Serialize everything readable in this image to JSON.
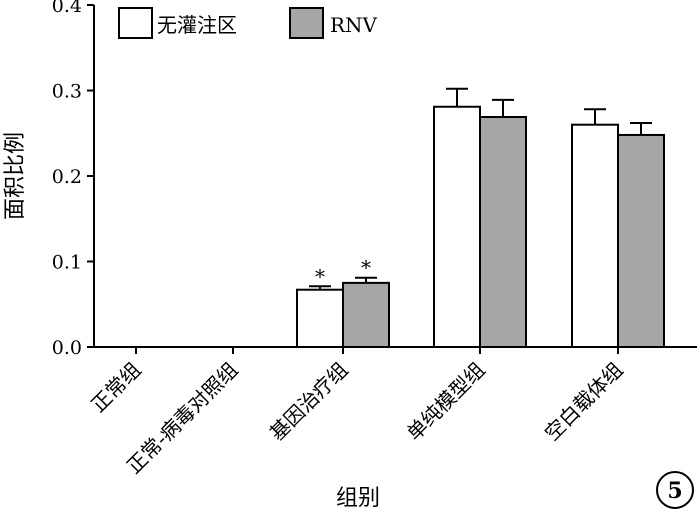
{
  "chart_data": {
    "type": "bar",
    "categories": [
      "正常组",
      "正常-病毒对照组",
      "基因治疗组",
      "单纯模型组",
      "空白载体组"
    ],
    "series": [
      {
        "name": "无灌注区",
        "color": "#ffffff",
        "values": [
          0,
          0,
          0.067,
          0.281,
          0.26
        ],
        "errors": [
          0,
          0,
          0.004,
          0.021,
          0.018
        ]
      },
      {
        "name": "RNV",
        "color": "#a6a6a6",
        "values": [
          0,
          0,
          0.075,
          0.269,
          0.248
        ],
        "errors": [
          0,
          0,
          0.006,
          0.02,
          0.014
        ]
      }
    ],
    "significance": [
      {
        "category_index": 2,
        "series_index": 0,
        "mark": "*"
      },
      {
        "category_index": 2,
        "series_index": 1,
        "mark": "*"
      }
    ],
    "xlabel": "组别",
    "ylabel": "面积比例",
    "ylim": [
      0,
      0.4
    ],
    "yticks": [
      "0.0",
      "0.1",
      "0.2",
      "0.3",
      "0.4"
    ],
    "ytick_values": [
      0,
      0.1,
      0.2,
      0.3,
      0.4
    ],
    "legend_position": "top-left",
    "grid": false
  },
  "panel_badge": "5"
}
